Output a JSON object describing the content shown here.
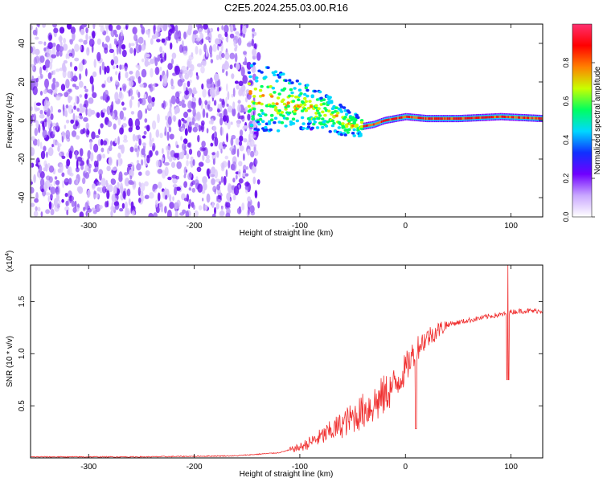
{
  "title": "C2E5.2024.255.03.00.R16",
  "colors": {
    "snr_line": "#f03030",
    "noise": "#6a1ee0",
    "axes": "#000000"
  },
  "colorbar": {
    "label": "Normalized spectral amplitude",
    "range": [
      0.0,
      1.0
    ],
    "ticks": [
      "0.0",
      "0.2",
      "0.4",
      "0.6",
      "0.8"
    ],
    "tick_values": [
      0.0,
      0.2,
      0.4,
      0.6,
      0.8
    ],
    "colormap": [
      "#ffffff",
      "#c9a8ff",
      "#7000ff",
      "#1030ff",
      "#00d8ff",
      "#00ff60",
      "#c8ff00",
      "#ff8000",
      "#ff0000",
      "#ff3070"
    ]
  },
  "chart_data": [
    {
      "type": "heatmap",
      "title": "C2E5.2024.255.03.00.R16",
      "xlabel": "Height of straight line (km)",
      "ylabel": "Frequency (Hz)",
      "xlim": [
        -355,
        130
      ],
      "ylim": [
        -50,
        50
      ],
      "xticks": [
        -300,
        -200,
        -100,
        0,
        100
      ],
      "yticks": [
        -40,
        -20,
        0,
        20,
        40
      ],
      "regions": [
        {
          "name": "noise",
          "x": [
            -355,
            -148
          ],
          "amplitude": 0.1
        },
        {
          "name": "transition",
          "x": [
            -148,
            -40
          ],
          "amplitude": 0.45
        },
        {
          "name": "tone",
          "x": [
            -40,
            130
          ],
          "amplitude": 0.9
        }
      ],
      "ridge": {
        "x": [
          -148,
          -130,
          -110,
          -90,
          -75,
          -60,
          -50,
          -40,
          -30,
          -20,
          -10,
          0,
          20,
          50,
          90,
          130
        ],
        "y": [
          12,
          11,
          9,
          7,
          4,
          0,
          -2,
          -3,
          -2,
          0,
          1,
          2,
          1,
          1,
          2,
          1
        ]
      }
    },
    {
      "type": "line",
      "xlabel": "Height of straight line (km)",
      "ylabel": "SNR (10 * v/v)",
      "yscale_label": "(x10",
      "yscale_exp": "4",
      "yscale_close": ")",
      "xlim": [
        -355,
        130
      ],
      "ylim": [
        0,
        1.85
      ],
      "xticks": [
        -300,
        -200,
        -100,
        0,
        100
      ],
      "yticks": [
        "0.5",
        "1.0",
        "1.5"
      ],
      "ytick_values": [
        0.5,
        1.0,
        1.5
      ],
      "series": [
        {
          "x": [
            -355,
            -250,
            -160,
            -120,
            -100,
            -80,
            -60,
            -40,
            -25,
            -10,
            0,
            10,
            20,
            30,
            40,
            60,
            80,
            95,
            100,
            110,
            130
          ],
          "values": [
            0.01,
            0.01,
            0.02,
            0.05,
            0.1,
            0.2,
            0.32,
            0.45,
            0.55,
            0.7,
            0.85,
            1.05,
            1.15,
            1.22,
            1.28,
            1.32,
            1.36,
            1.38,
            1.4,
            1.41,
            1.41
          ]
        }
      ],
      "annotations": {
        "spike": {
          "x": 97,
          "max": 1.85,
          "min": 0.75
        },
        "dip": {
          "x": 10,
          "min": 0.28
        }
      }
    }
  ]
}
